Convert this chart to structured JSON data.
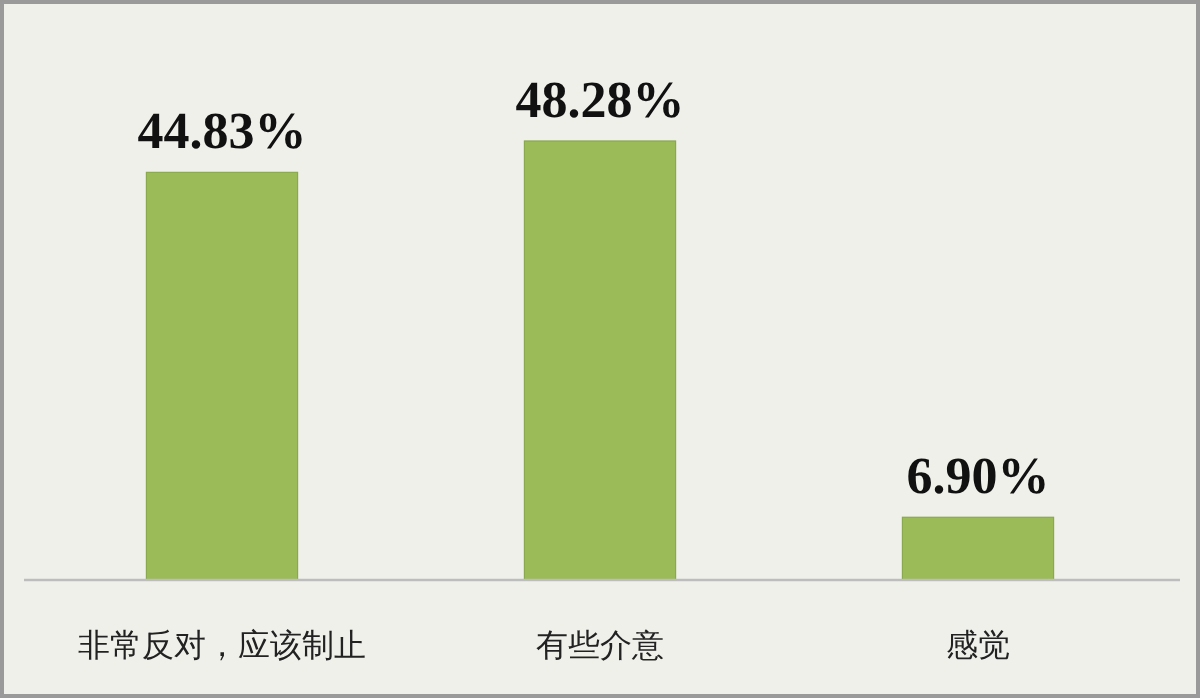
{
  "chart_data": {
    "type": "bar",
    "categories": [
      "非常反对，应该制止",
      "有些介意",
      "感觉"
    ],
    "values": [
      44.83,
      48.28,
      6.9
    ],
    "value_labels": [
      "44.83%",
      "48.28%",
      "6.90%"
    ],
    "color": "#9bbb59"
  }
}
